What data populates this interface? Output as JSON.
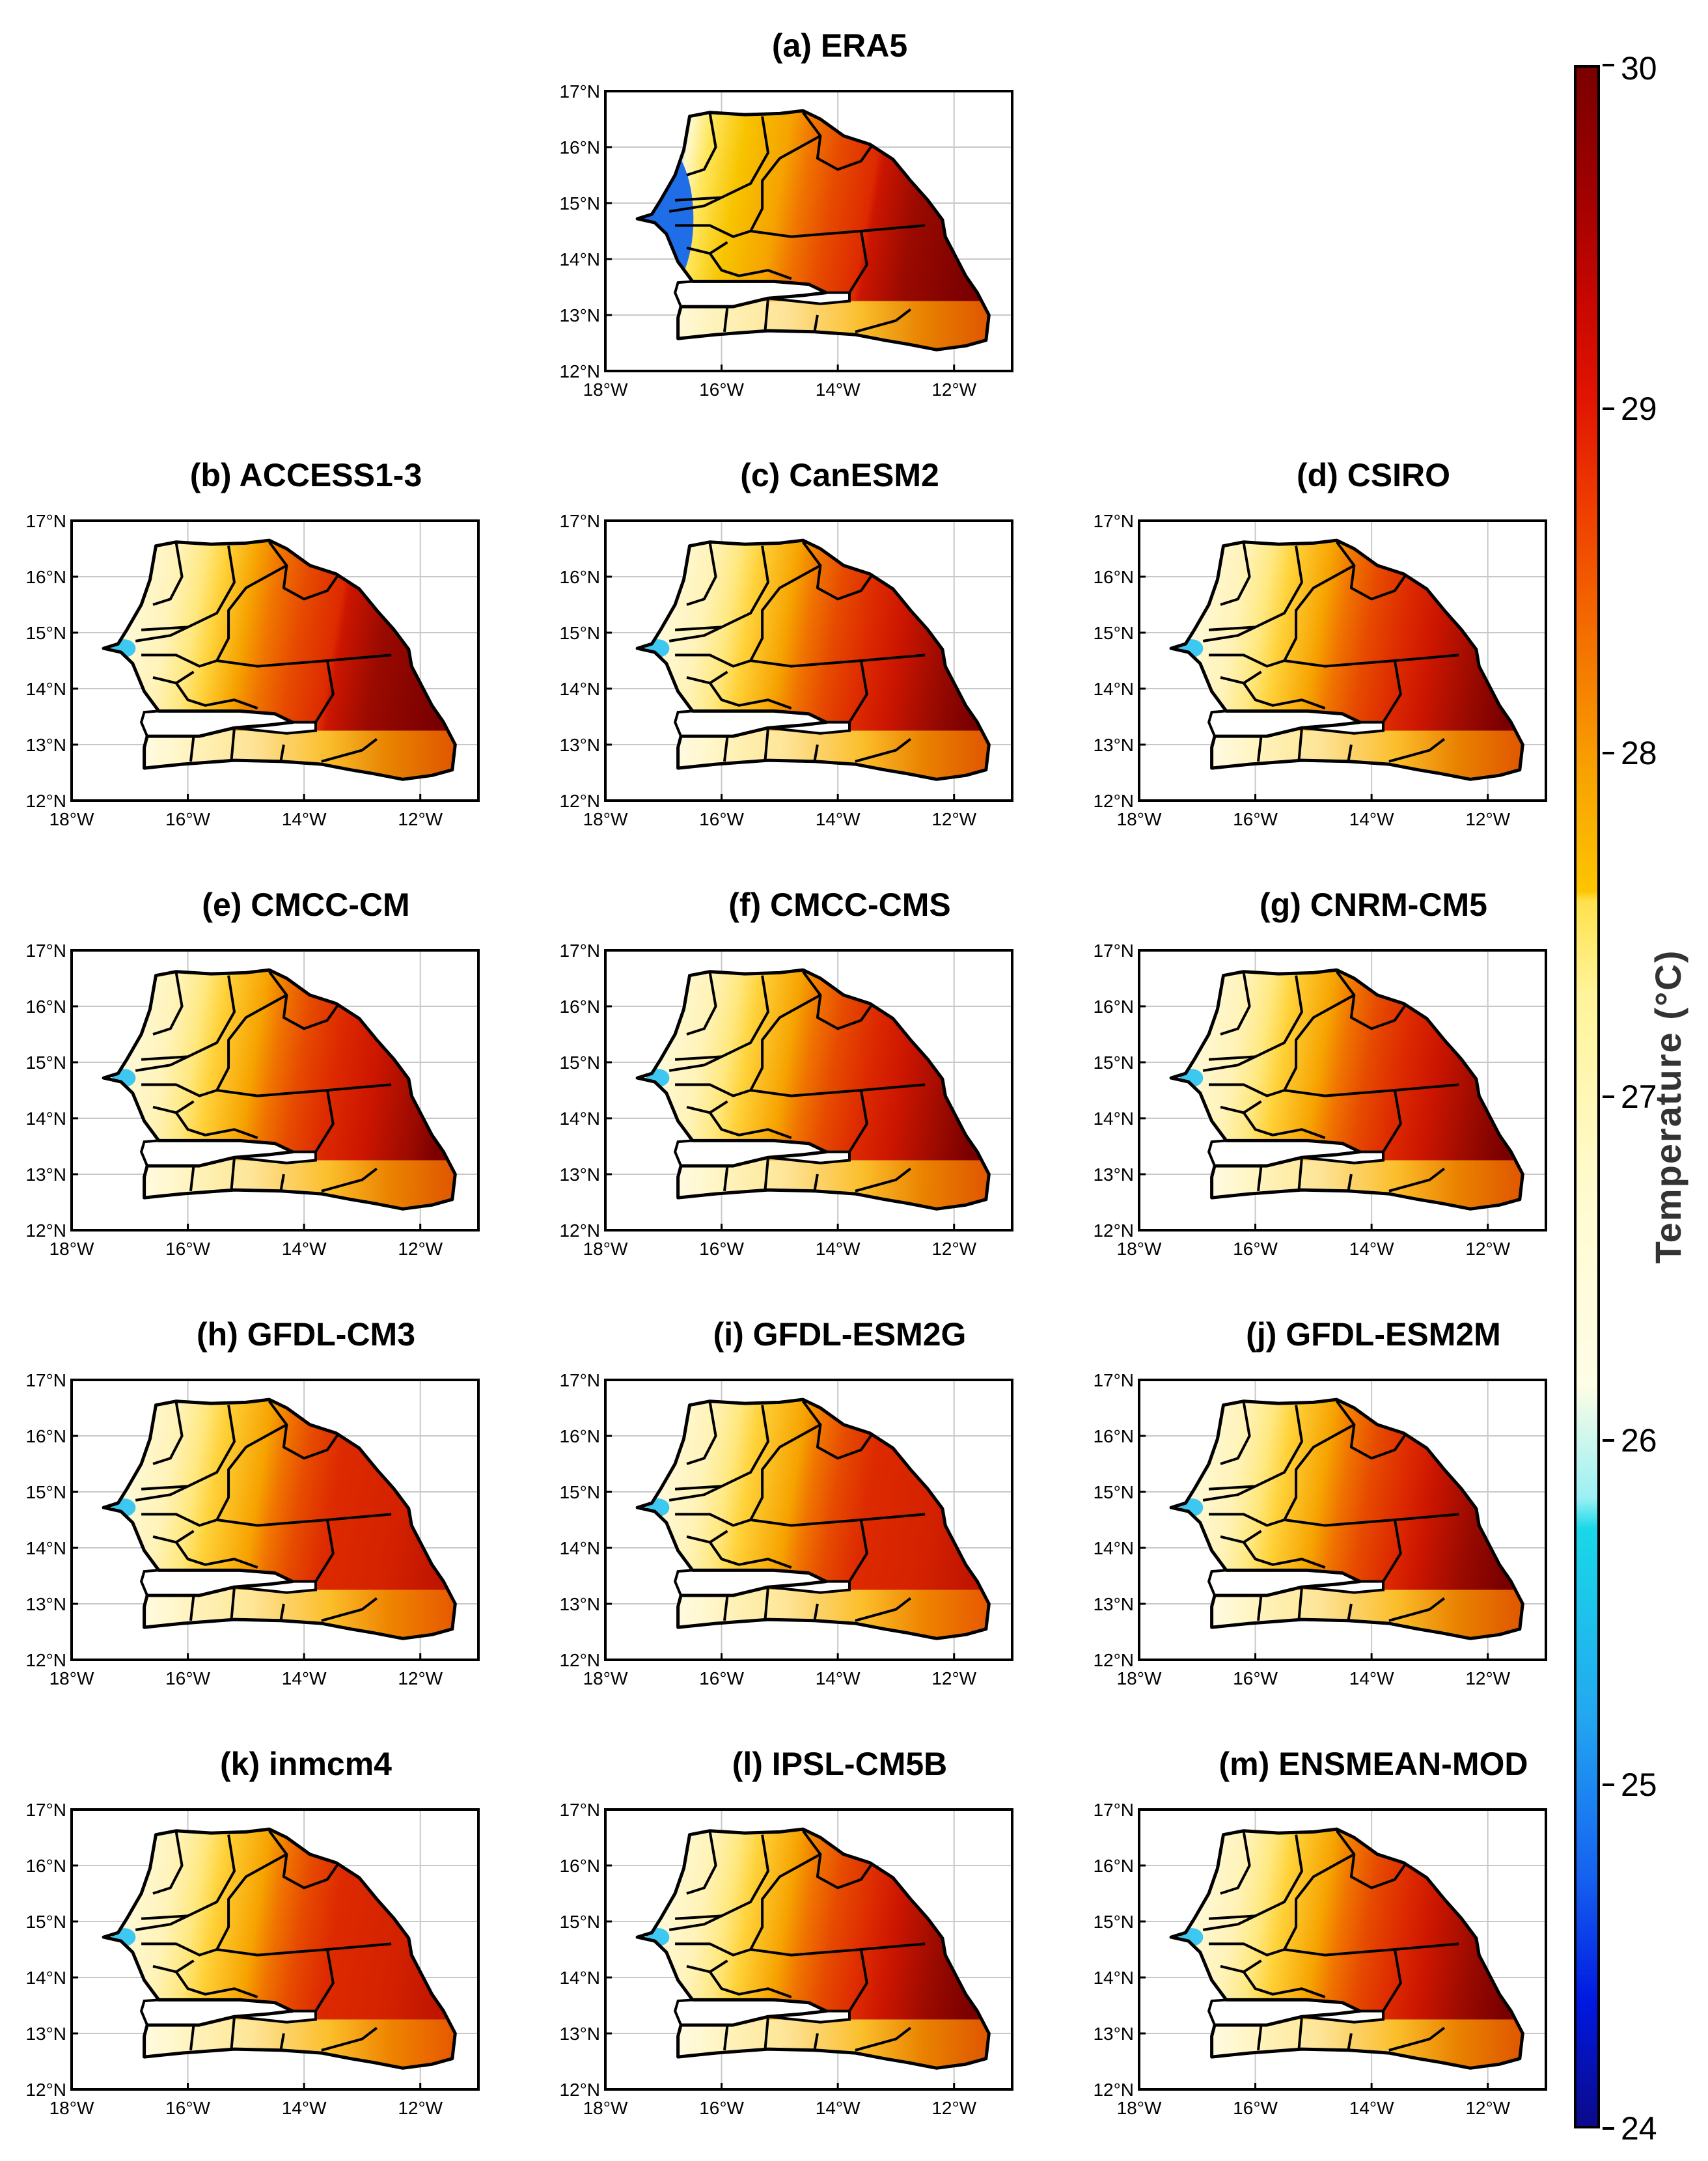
{
  "figure": {
    "map_extent": {
      "lon_min": -18,
      "lon_max": -11,
      "lat_min": 12,
      "lat_max": 17
    },
    "lat_ticks": [
      "12°N",
      "13°N",
      "14°N",
      "15°N",
      "16°N",
      "17°N"
    ],
    "lon_ticks": [
      "18°W",
      "16°W",
      "14°W",
      "12°W"
    ],
    "panels": [
      {
        "id": "a",
        "title": "(a) ERA5",
        "warmth": 1.35,
        "coast": 1.0,
        "dark_core": 1.0
      },
      {
        "id": "b",
        "title": "(b) ACCESS1-3",
        "warmth": 1.3,
        "coast": 0.35,
        "dark_core": 1.0
      },
      {
        "id": "c",
        "title": "(c) CanESM2",
        "warmth": 1.05,
        "coast": 0.55,
        "dark_core": 0.4
      },
      {
        "id": "d",
        "title": "(d) CSIRO",
        "warmth": 1.05,
        "coast": 0.55,
        "dark_core": 0.4
      },
      {
        "id": "e",
        "title": "(e) CMCC-CM",
        "warmth": 1.0,
        "coast": 0.6,
        "dark_core": 0.15
      },
      {
        "id": "f",
        "title": "(f) CMCC-CMS",
        "warmth": 1.0,
        "coast": 0.6,
        "dark_core": 0.3
      },
      {
        "id": "g",
        "title": "(g) CNRM-CM5",
        "warmth": 1.0,
        "coast": 0.6,
        "dark_core": 0.35
      },
      {
        "id": "h",
        "title": "(h) GFDL-CM3",
        "warmth": 0.9,
        "coast": 0.6,
        "dark_core": 0.0
      },
      {
        "id": "i",
        "title": "(i) GFDL-ESM2G",
        "warmth": 0.9,
        "coast": 0.6,
        "dark_core": 0.0
      },
      {
        "id": "j",
        "title": "(j) GFDL-ESM2M",
        "warmth": 1.0,
        "coast": 0.6,
        "dark_core": 0.5
      },
      {
        "id": "k",
        "title": "(k) inmcm4",
        "warmth": 0.95,
        "coast": 0.6,
        "dark_core": 0.0
      },
      {
        "id": "l",
        "title": "(l) IPSL-CM5B",
        "warmth": 1.05,
        "coast": 0.6,
        "dark_core": 0.5
      },
      {
        "id": "m",
        "title": "(m) ENSMEAN-MOD",
        "warmth": 1.0,
        "coast": 0.6,
        "dark_core": 0.45
      }
    ]
  },
  "colorbar": {
    "title": "Temperature (°C)",
    "min": 24,
    "max": 30,
    "ticks": [
      "24",
      "25",
      "26",
      "27",
      "28",
      "29",
      "30"
    ]
  }
}
